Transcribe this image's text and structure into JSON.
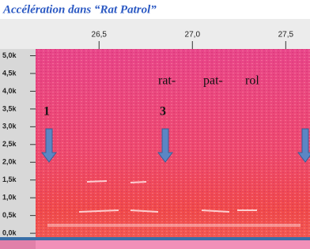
{
  "chart_data": {
    "type": "spectrogram",
    "title": "Accélération dans “Rat Patrol”",
    "xlim": [
      26.16,
      27.63
    ],
    "xticks": [
      {
        "value": 26.5,
        "label": "26,5"
      },
      {
        "value": 27.0,
        "label": "27,0"
      },
      {
        "value": 27.5,
        "label": "27,5"
      }
    ],
    "ylim": [
      -0.1,
      5.1
    ],
    "yticks": [
      {
        "value": 5.0,
        "label": "5,0k"
      },
      {
        "value": 4.5,
        "label": "4,5k"
      },
      {
        "value": 4.0,
        "label": "4,0k"
      },
      {
        "value": 3.5,
        "label": "3,5k"
      },
      {
        "value": 3.0,
        "label": "3,0k"
      },
      {
        "value": 2.5,
        "label": "2,5k"
      },
      {
        "value": 2.0,
        "label": "2,0k"
      },
      {
        "value": 1.5,
        "label": "1,5k"
      },
      {
        "value": 1.0,
        "label": "1,0k"
      },
      {
        "value": 0.5,
        "label": "0,5k"
      },
      {
        "value": 0.0,
        "label": "0,0k"
      }
    ],
    "annotations": [
      "rat-",
      "pat-",
      "rol",
      "1",
      "3"
    ]
  }
}
